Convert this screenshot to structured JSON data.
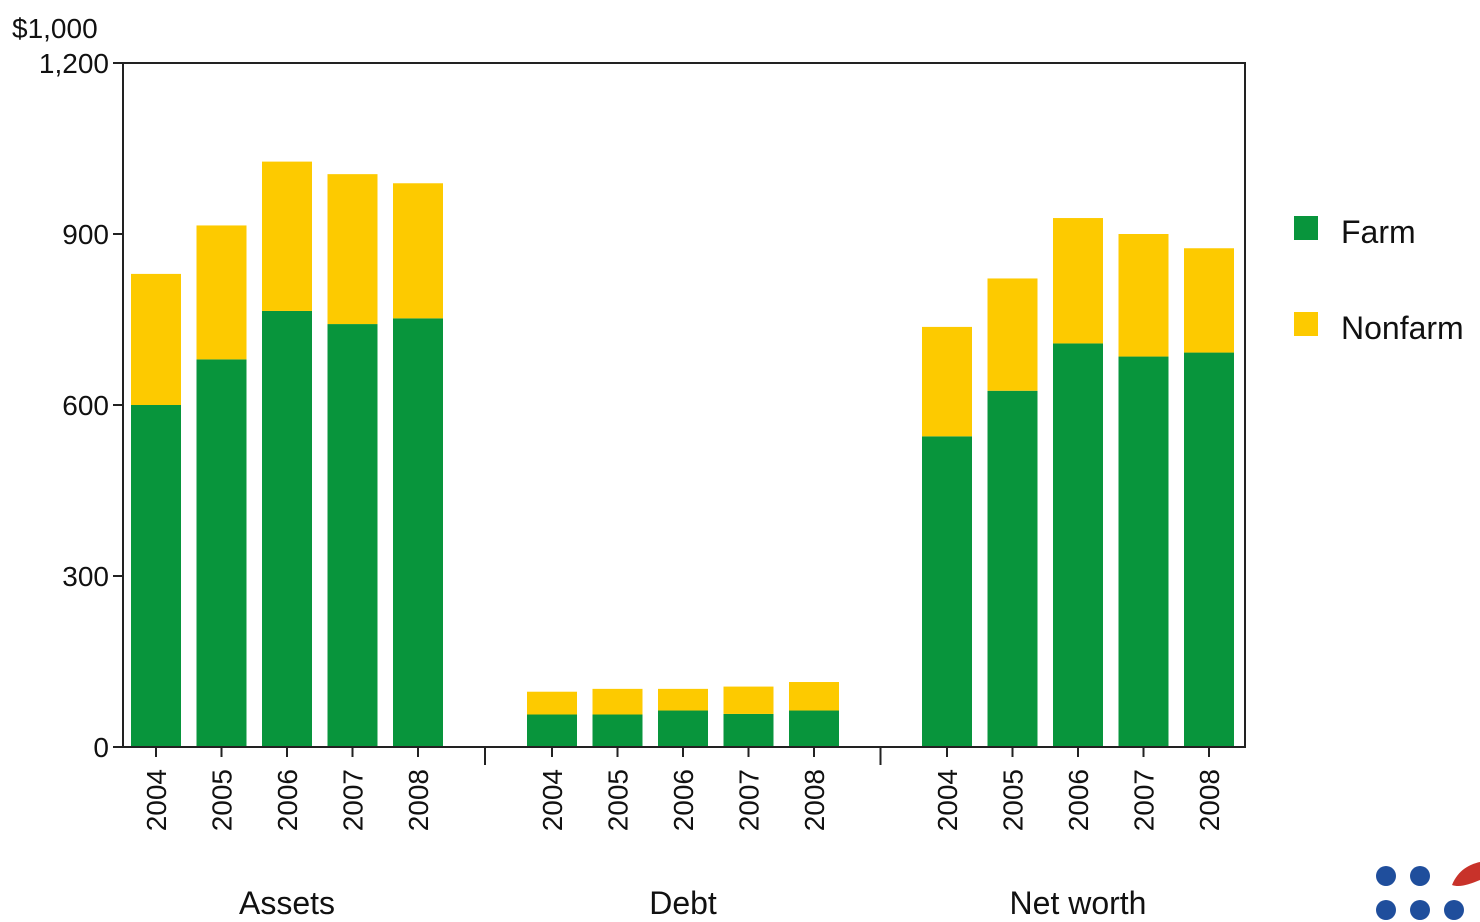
{
  "chart_data": {
    "type": "bar",
    "stacked": true,
    "title": "",
    "xlabel": "",
    "ylabel": "",
    "y_unit_label": "$1,000",
    "ylim": [
      0,
      1200
    ],
    "y_ticks": [
      "0",
      "300",
      "600",
      "900",
      "1,200"
    ],
    "y_tick_values": [
      0,
      300,
      600,
      900,
      1200
    ],
    "groups": [
      {
        "name": "Assets",
        "categories": [
          "2004",
          "2005",
          "2006",
          "2007",
          "2008"
        ],
        "series": [
          {
            "name": "Farm",
            "values": [
              600,
              680,
              765,
              742,
              752
            ]
          },
          {
            "name": "Nonfarm",
            "values": [
              230,
              235,
              262,
              263,
              237
            ]
          }
        ]
      },
      {
        "name": "Debt",
        "categories": [
          "2004",
          "2005",
          "2006",
          "2007",
          "2008"
        ],
        "series": [
          {
            "name": "Farm",
            "values": [
              57,
              57,
              64,
              58,
              64
            ]
          },
          {
            "name": "Nonfarm",
            "values": [
              40,
              45,
              38,
              48,
              50
            ]
          }
        ]
      },
      {
        "name": "Net worth",
        "categories": [
          "2004",
          "2005",
          "2006",
          "2007",
          "2008"
        ],
        "series": [
          {
            "name": "Farm",
            "values": [
              545,
              625,
              708,
              685,
              692
            ]
          },
          {
            "name": "Nonfarm",
            "values": [
              192,
              197,
              220,
              215,
              183
            ]
          }
        ]
      }
    ],
    "legend": {
      "position": "right",
      "entries": [
        {
          "name": "Farm",
          "color": "#08953c"
        },
        {
          "name": "Nonfarm",
          "color": "#fdca00"
        }
      ]
    },
    "grid": false
  }
}
